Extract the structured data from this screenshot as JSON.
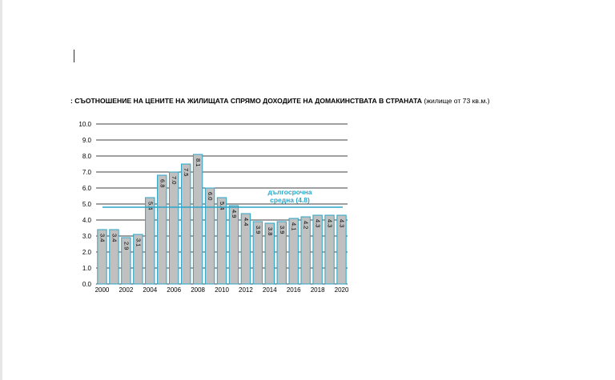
{
  "document": {
    "title_main": ": СЪОТНОШЕНИЕ НА ЦЕНИТЕ НА ЖИЛИЩАТА СПРЯМО ДОХОДИТЕ НА ДОМАКИНСТВАТА В СТРАНАТА",
    "title_note": "(жилище от 73 кв.м.)"
  },
  "chart_data": {
    "type": "bar",
    "title": ": СЪОТНОШЕНИЕ НА ЦЕНИТЕ НА ЖИЛИЩАТА СПРЯМО ДОХОДИТЕ НА ДОМАКИНСТВАТА В СТРАНАТА (жилище от 73 кв.м.)",
    "xlabel": "",
    "ylabel": "",
    "categories": [
      "2000",
      "2001",
      "2002",
      "2003",
      "2004",
      "2005",
      "2006",
      "2007",
      "2008",
      "2009",
      "2010",
      "2011",
      "2012",
      "2013",
      "2014",
      "2015",
      "2016",
      "2017",
      "2018",
      "2019",
      "2020"
    ],
    "values": [
      3.4,
      3.4,
      2.9,
      3.1,
      5.4,
      6.8,
      7.0,
      7.5,
      8.1,
      6.0,
      5.4,
      4.9,
      4.4,
      3.9,
      3.8,
      3.9,
      4.1,
      4.2,
      4.3,
      4.3,
      4.3
    ],
    "value_labels": [
      "3.4",
      "3.4",
      "2.9",
      "3.1",
      "5.4",
      "6.8",
      "7.0",
      "7.5",
      "8.1",
      "6.0",
      "5.4",
      "4.9",
      "4.4",
      "3.9",
      "3.8",
      "3.9",
      "4.1",
      "4.2",
      "4.3",
      "4.3",
      "4.3"
    ],
    "x_tick_labels": [
      "2000",
      "2002",
      "2004",
      "2006",
      "2008",
      "2010",
      "2012",
      "2014",
      "2016",
      "2018",
      "2020"
    ],
    "y_tick_labels": [
      "0.0",
      "1.0",
      "2.0",
      "3.0",
      "4.0",
      "5.0",
      "6.0",
      "7.0",
      "8.0",
      "9.0",
      "10.0"
    ],
    "ylim": [
      0,
      10
    ],
    "grid": true,
    "reference_line": {
      "value": 4.8,
      "label_line1": "дългосрочна",
      "label_line2": "средна (4.8)",
      "color": "#2aa6c8"
    },
    "colors": {
      "bar_fill": "#c0c0c0",
      "bar_stroke": "#2aa6c8",
      "grid": "#000000"
    }
  }
}
